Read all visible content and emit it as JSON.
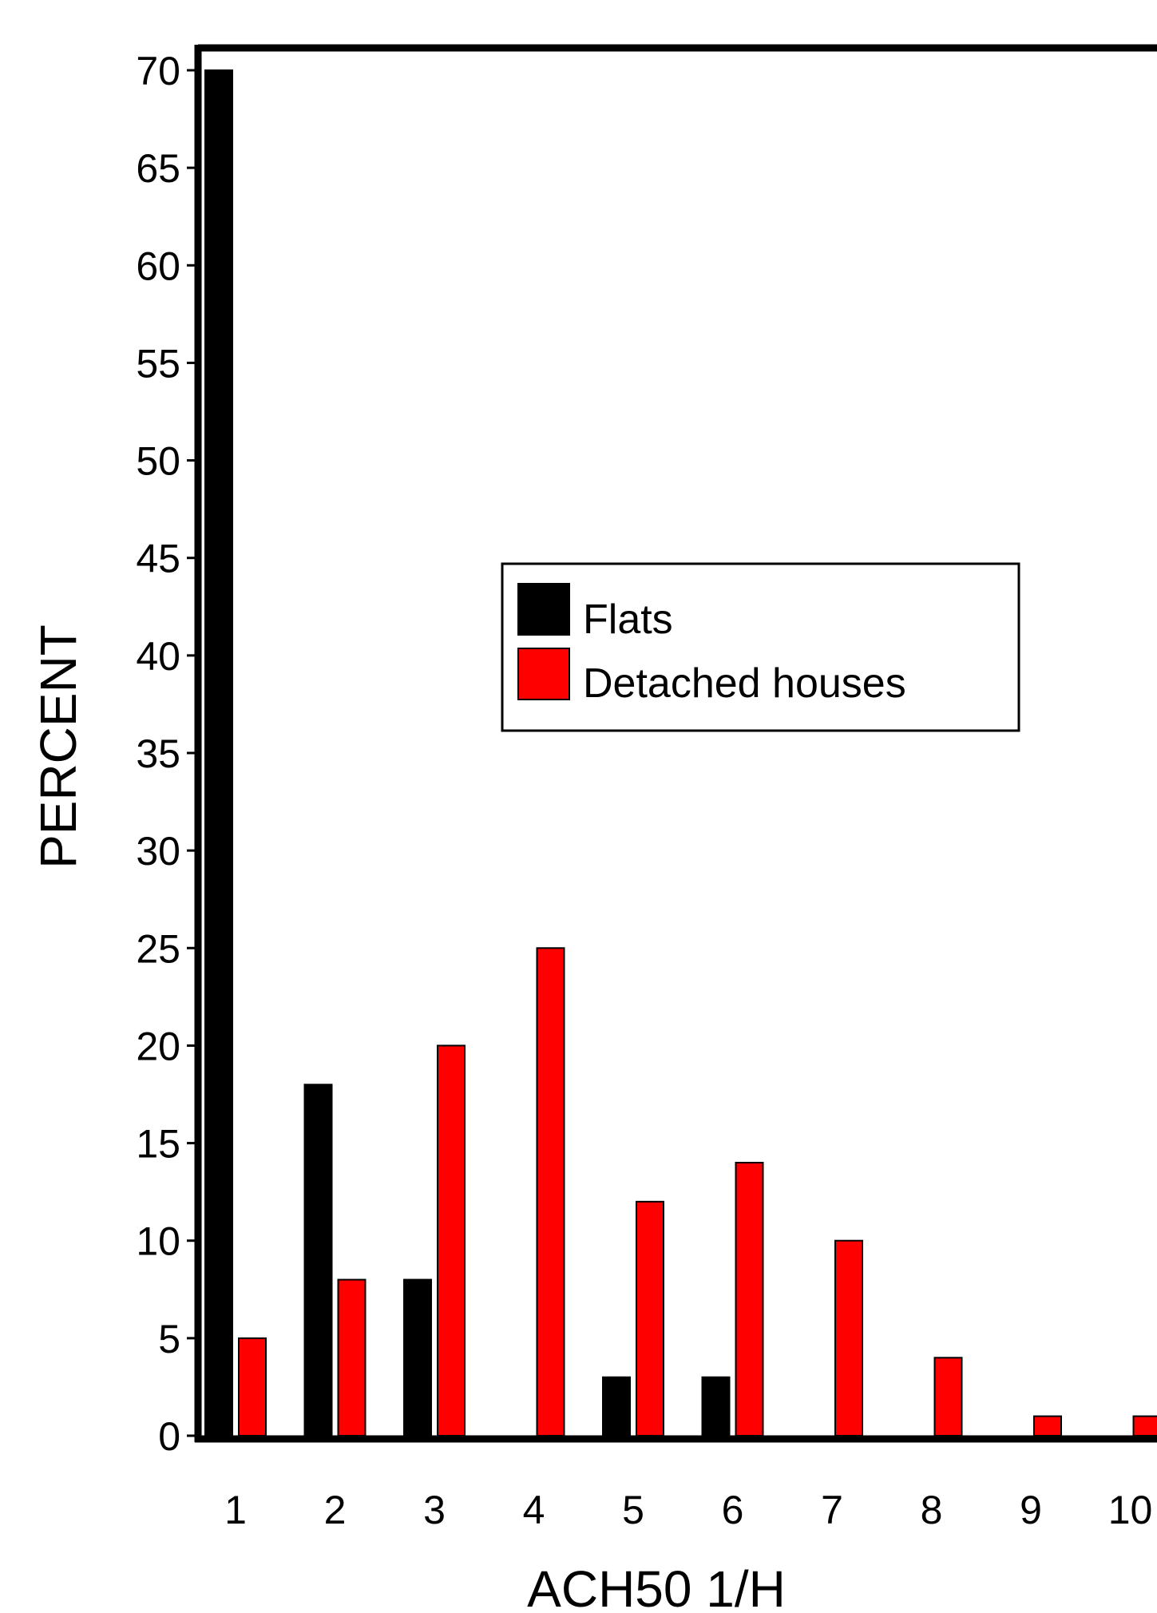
{
  "chart_data": {
    "type": "bar",
    "title": "",
    "xlabel": "ACH50 1/H",
    "ylabel": "PERCENT",
    "categories": [
      "1",
      "2",
      "3",
      "4",
      "5",
      "6",
      "7",
      "8",
      "9",
      "10"
    ],
    "series": [
      {
        "name": "Flats",
        "color": "#000000",
        "values": [
          70,
          18,
          8,
          0,
          3,
          3,
          0,
          0,
          0,
          0
        ]
      },
      {
        "name": "Detached houses",
        "color": "#ff0000",
        "values": [
          5,
          8,
          20,
          25,
          12,
          14,
          10,
          4,
          1,
          1
        ]
      }
    ],
    "ylim": [
      0,
      70
    ],
    "yticks": [
      "0",
      "5",
      "10",
      "15",
      "20",
      "25",
      "30",
      "35",
      "40",
      "45",
      "50",
      "55",
      "60",
      "65",
      "70"
    ],
    "grid": false,
    "legend_position": "center"
  }
}
